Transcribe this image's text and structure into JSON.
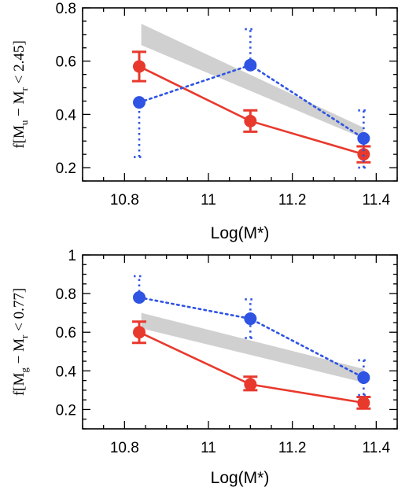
{
  "chart_data": [
    {
      "type": "line",
      "xlabel": "Log(M*)",
      "ylabel": "f[M_u − M_r < 2.45]",
      "ylabel_parts": [
        "f[M",
        "u",
        " − M",
        "r",
        " < 2.45]"
      ],
      "xlim": [
        10.7,
        11.45
      ],
      "ylim": [
        0.15,
        0.8
      ],
      "xticks": [
        10.8,
        11,
        11.2,
        11.4
      ],
      "yticks": [
        0.2,
        0.4,
        0.6,
        0.8
      ],
      "x_tick_labels": [
        "10.8",
        "11",
        "11.2",
        "11.4"
      ],
      "y_tick_labels": [
        "0.2",
        "0.4",
        "0.6",
        "0.8"
      ],
      "band": {
        "x": [
          10.84,
          11.37
        ],
        "lower": [
          0.66,
          0.31
        ],
        "upper": [
          0.74,
          0.35
        ]
      },
      "series": [
        {
          "style": "solid",
          "color": "#e8392d",
          "x": [
            10.835,
            11.1,
            11.37
          ],
          "y": [
            0.58,
            0.375,
            0.25
          ],
          "yerr_low": [
            0.055,
            0.04,
            0.03
          ],
          "yerr_high": [
            0.055,
            0.04,
            0.03
          ]
        },
        {
          "style": "dotted",
          "color": "#2f54e3",
          "x": [
            10.835,
            11.1,
            11.37
          ],
          "y": [
            0.445,
            0.585,
            0.31
          ],
          "yerr_low": [
            0.205,
            0.0,
            0.11
          ],
          "yerr_high": [
            0.0,
            0.135,
            0.105
          ]
        }
      ]
    },
    {
      "type": "line",
      "xlabel": "Log(M*)",
      "ylabel": "f[M_g − M_r < 0.77]",
      "ylabel_parts": [
        "f[M",
        "g",
        " − M",
        "r",
        " < 0.77]"
      ],
      "xlim": [
        10.7,
        11.45
      ],
      "ylim": [
        0.1,
        1.0
      ],
      "xticks": [
        10.8,
        11,
        11.2,
        11.4
      ],
      "yticks": [
        0.2,
        0.4,
        0.6,
        0.8,
        1.0
      ],
      "x_tick_labels": [
        "10.8",
        "11",
        "11.2",
        "11.4"
      ],
      "y_tick_labels": [
        "0.2",
        "0.4",
        "0.6",
        "0.8",
        "1"
      ],
      "band": {
        "x": [
          10.84,
          11.37
        ],
        "lower": [
          0.62,
          0.34
        ],
        "upper": [
          0.7,
          0.41
        ]
      },
      "series": [
        {
          "style": "solid",
          "color": "#e8392d",
          "x": [
            10.835,
            11.1,
            11.37
          ],
          "y": [
            0.6,
            0.33,
            0.235
          ],
          "yerr_low": [
            0.055,
            0.03,
            0.03
          ],
          "yerr_high": [
            0.055,
            0.04,
            0.03
          ]
        },
        {
          "style": "dotted",
          "color": "#2f54e3",
          "x": [
            10.835,
            11.1,
            11.37
          ],
          "y": [
            0.78,
            0.67,
            0.365
          ],
          "yerr_low": [
            0.0,
            0.1,
            0.09
          ],
          "yerr_high": [
            0.11,
            0.1,
            0.09
          ]
        }
      ]
    }
  ],
  "colors": {
    "red": "#e8392d",
    "blue": "#2f54e3",
    "band": "#cfd0cf"
  }
}
